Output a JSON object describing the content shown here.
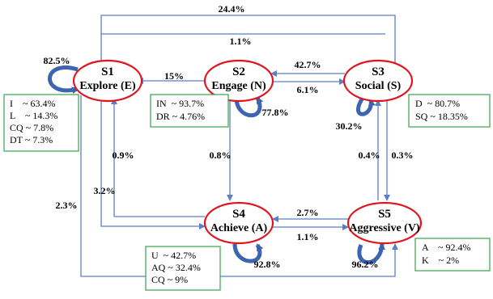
{
  "colors": {
    "ellipse_stroke": "#e0141e",
    "arrow": "#5b7fc7",
    "loop": "#3d64b0",
    "box_border": "#3aa04a"
  },
  "states": {
    "s1": {
      "id": "S1",
      "name": "Explore (E)"
    },
    "s2": {
      "id": "S2",
      "name": "Engage (N)"
    },
    "s3": {
      "id": "S3",
      "name": "Social (S)"
    },
    "s4": {
      "id": "S4",
      "name": "Achieve (A)"
    },
    "s5": {
      "id": "S5",
      "name": "Aggressive (V)"
    }
  },
  "transitions": {
    "s1_s3_top": "24.4%",
    "s3_s1_top": "1.1%",
    "s1_self": "82.5%",
    "s2_s1": "15%",
    "s3_s2": "42.7%",
    "s2_s3": "6.1%",
    "s2_self": "77.8%",
    "s3_self": "30.2%",
    "s4_s1": "0.9%",
    "s2_s4": "0.8%",
    "s1_s4": "3.2%",
    "s1_s5": "2.3%",
    "s5_s3": "0.4%",
    "s3_s5": "0.3%",
    "s5_s4": "2.7%",
    "s4_s5": "1.1%",
    "s4_self": "92.8%",
    "s5_self": "96.2%"
  },
  "boxes": {
    "s1": [
      "I    ~ 63.4%",
      "L    ~ 14.3%",
      "CQ ~ 7.8%",
      "DT ~ 7.3%"
    ],
    "s2": [
      "IN  ~ 93.7%",
      "DR ~ 4.76%"
    ],
    "s3": [
      "D  ~ 80.7%",
      "SQ ~ 18.35%"
    ],
    "s4": [
      "U  ~ 42.7%",
      "AQ ~ 32.4%",
      "CQ ~ 9%"
    ],
    "s5": [
      "A    ~ 92.4%",
      "K    ~ 2%"
    ]
  }
}
